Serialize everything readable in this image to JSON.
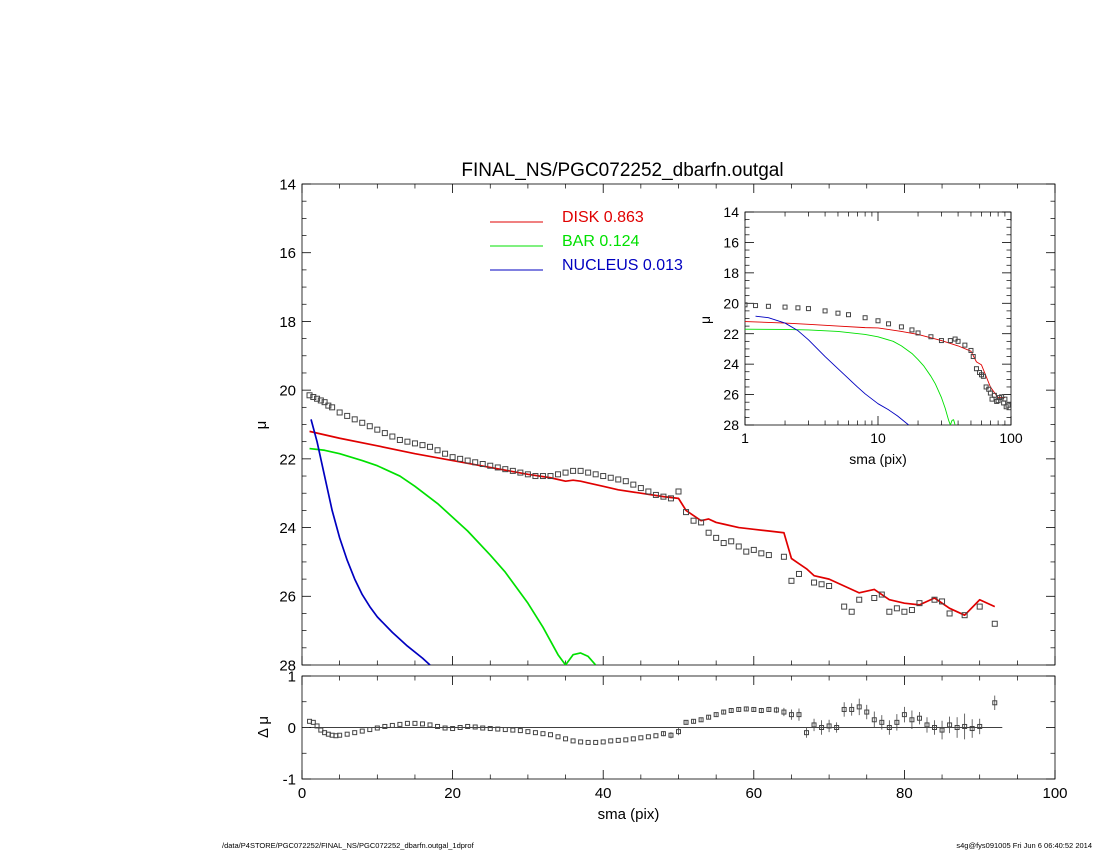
{
  "chart_data": [
    {
      "panel": "main",
      "type": "line",
      "title": "FINAL_NS/PGC072252_dbarfn.outgal",
      "xlabel": "",
      "ylabel": "μ",
      "xlim": [
        0,
        100
      ],
      "ylim": [
        14,
        28
      ],
      "y_inverted": true,
      "x_ticks": [
        0,
        20,
        40,
        60,
        80,
        100
      ],
      "y_ticks": [
        14,
        16,
        18,
        20,
        22,
        24,
        26,
        28
      ],
      "grid": false,
      "legend_position": "top",
      "legend": [
        {
          "name": "DISK",
          "value": "0.863",
          "color": "#e00000"
        },
        {
          "name": "BAR",
          "value": "0.124",
          "color": "#00e000"
        },
        {
          "name": "NUCLEUS",
          "value": "0.013",
          "color": "#0000c0"
        }
      ],
      "series": [
        {
          "name": "DISK",
          "color": "#e00000",
          "x": [
            1,
            5,
            10,
            15,
            20,
            25,
            30,
            33,
            35,
            36,
            37,
            38,
            40,
            42,
            45,
            48,
            50,
            51,
            52,
            53,
            54,
            55,
            56,
            58,
            60,
            62,
            64,
            65,
            66,
            67,
            68,
            70,
            72,
            74,
            76,
            78,
            80,
            82,
            84,
            86,
            88,
            90,
            92
          ],
          "y": [
            21.2,
            21.4,
            21.62,
            21.85,
            22.05,
            22.25,
            22.45,
            22.55,
            22.65,
            22.62,
            22.65,
            22.7,
            22.8,
            22.9,
            23.0,
            23.1,
            23.15,
            23.5,
            23.65,
            23.8,
            23.75,
            23.85,
            23.9,
            24.0,
            24.05,
            24.1,
            24.15,
            24.9,
            25.05,
            25.2,
            25.4,
            25.5,
            25.7,
            25.9,
            25.8,
            26.1,
            26.2,
            26.25,
            26.05,
            26.35,
            26.55,
            26.1,
            26.3
          ]
        },
        {
          "name": "BAR",
          "color": "#00e000",
          "x": [
            1,
            3,
            5,
            8,
            10,
            13,
            15,
            18,
            20,
            22,
            25,
            27,
            30,
            32,
            33,
            34,
            35,
            36,
            37,
            38,
            39
          ],
          "y": [
            21.7,
            21.75,
            21.85,
            22.05,
            22.2,
            22.5,
            22.8,
            23.3,
            23.7,
            24.1,
            24.8,
            25.3,
            26.2,
            26.9,
            27.3,
            27.7,
            28.0,
            27.7,
            27.65,
            27.75,
            28.0
          ]
        },
        {
          "name": "NUCLEUS",
          "color": "#0000c0",
          "x": [
            1.2,
            2,
            3,
            4,
            5,
            6,
            7,
            8,
            9,
            10,
            12,
            14,
            16,
            17
          ],
          "y": [
            20.85,
            21.5,
            22.5,
            23.5,
            24.3,
            24.95,
            25.5,
            25.95,
            26.3,
            26.6,
            27.05,
            27.45,
            27.8,
            28.0
          ]
        },
        {
          "name": "data",
          "style": "open-squares",
          "color": "#404040",
          "x": [
            1,
            1.5,
            2,
            2.5,
            3,
            3.5,
            4,
            5,
            6,
            7,
            8,
            9,
            10,
            11,
            12,
            13,
            14,
            15,
            16,
            17,
            18,
            19,
            20,
            21,
            22,
            23,
            24,
            25,
            26,
            27,
            28,
            29,
            30,
            31,
            32,
            33,
            34,
            35,
            36,
            37,
            38,
            39,
            40,
            41,
            42,
            43,
            44,
            45,
            46,
            47,
            48,
            49,
            50,
            51,
            52,
            53,
            54,
            55,
            56,
            57,
            58,
            59,
            60,
            61,
            62,
            64,
            65,
            66,
            68,
            69,
            70,
            72,
            73,
            74,
            76,
            77,
            78,
            79,
            80,
            81,
            82,
            84,
            85,
            86,
            88,
            90,
            92
          ],
          "y": [
            20.15,
            20.2,
            20.25,
            20.3,
            20.35,
            20.45,
            20.5,
            20.65,
            20.75,
            20.85,
            20.95,
            21.05,
            21.15,
            21.25,
            21.35,
            21.45,
            21.5,
            21.55,
            21.6,
            21.65,
            21.75,
            21.85,
            21.95,
            22.0,
            22.05,
            22.1,
            22.15,
            22.2,
            22.25,
            22.3,
            22.35,
            22.4,
            22.45,
            22.5,
            22.5,
            22.5,
            22.45,
            22.4,
            22.35,
            22.35,
            22.4,
            22.45,
            22.5,
            22.55,
            22.6,
            22.65,
            22.75,
            22.85,
            22.95,
            23.05,
            23.1,
            23.15,
            22.95,
            23.55,
            23.8,
            23.85,
            24.15,
            24.3,
            24.45,
            24.4,
            24.55,
            24.7,
            24.65,
            24.75,
            24.8,
            24.85,
            25.55,
            25.35,
            25.6,
            25.65,
            25.7,
            26.3,
            26.45,
            26.1,
            26.05,
            25.95,
            26.45,
            26.35,
            26.45,
            26.4,
            26.2,
            26.1,
            26.15,
            26.5,
            26.55,
            26.3,
            26.8
          ]
        }
      ]
    },
    {
      "panel": "residual",
      "type": "scatter",
      "xlabel": "sma (pix)",
      "ylabel": "Δ μ",
      "xlim": [
        0,
        100
      ],
      "ylim": [
        -1,
        1
      ],
      "x_ticks": [
        0,
        20,
        40,
        60,
        80,
        100
      ],
      "y_ticks": [
        -1,
        0,
        1
      ],
      "grid": false,
      "zero_line": true,
      "x": [
        1,
        1.5,
        2,
        2.5,
        3,
        3.5,
        4,
        4.5,
        5,
        6,
        7,
        8,
        9,
        10,
        11,
        12,
        13,
        14,
        15,
        16,
        17,
        18,
        19,
        20,
        21,
        22,
        23,
        24,
        25,
        26,
        27,
        28,
        29,
        30,
        31,
        32,
        33,
        34,
        35,
        36,
        37,
        38,
        39,
        40,
        41,
        42,
        43,
        44,
        45,
        46,
        47,
        48,
        49,
        50,
        51,
        52,
        53,
        54,
        55,
        56,
        57,
        58,
        59,
        60,
        61,
        62,
        63,
        64,
        65,
        66,
        67,
        68,
        69,
        70,
        71,
        72,
        73,
        74,
        75,
        76,
        77,
        78,
        79,
        80,
        81,
        82,
        83,
        84,
        85,
        86,
        87,
        88,
        89,
        90,
        92
      ],
      "y": [
        0.12,
        0.1,
        0.03,
        -0.05,
        -0.1,
        -0.13,
        -0.15,
        -0.16,
        -0.15,
        -0.13,
        -0.1,
        -0.07,
        -0.04,
        -0.01,
        0.02,
        0.04,
        0.06,
        0.08,
        0.08,
        0.07,
        0.05,
        0.02,
        -0.01,
        -0.02,
        0.0,
        0.02,
        0.01,
        -0.01,
        -0.02,
        -0.03,
        -0.04,
        -0.05,
        -0.06,
        -0.08,
        -0.1,
        -0.12,
        -0.14,
        -0.18,
        -0.22,
        -0.26,
        -0.28,
        -0.29,
        -0.29,
        -0.28,
        -0.26,
        -0.25,
        -0.24,
        -0.22,
        -0.2,
        -0.18,
        -0.16,
        -0.12,
        -0.15,
        -0.08,
        0.1,
        0.12,
        0.15,
        0.2,
        0.25,
        0.3,
        0.33,
        0.35,
        0.36,
        0.35,
        0.33,
        0.35,
        0.34,
        0.3,
        0.25,
        0.25,
        -0.1,
        0.05,
        0.0,
        0.03,
        0.0,
        0.35,
        0.35,
        0.4,
        0.3,
        0.15,
        0.1,
        0.0,
        0.1,
        0.25,
        0.15,
        0.18,
        0.05,
        0.0,
        -0.05,
        0.05,
        0.0,
        0.02,
        -0.02,
        0.02,
        0.48
      ],
      "err": [
        0,
        0,
        0,
        0,
        0,
        0,
        0,
        0,
        0,
        0,
        0,
        0,
        0,
        0,
        0,
        0,
        0,
        0,
        0,
        0,
        0,
        0,
        0,
        0,
        0,
        0,
        0,
        0,
        0,
        0,
        0,
        0,
        0,
        0,
        0,
        0,
        0,
        0,
        0,
        0,
        0,
        0,
        0,
        0,
        0,
        0,
        0,
        0,
        0,
        0,
        0,
        0.05,
        0.06,
        0.07,
        0.04,
        0.04,
        0.04,
        0.04,
        0.04,
        0.04,
        0.04,
        0.04,
        0.04,
        0.04,
        0.05,
        0.05,
        0.06,
        0.08,
        0.1,
        0.12,
        0.1,
        0.12,
        0.14,
        0.12,
        0.1,
        0.14,
        0.12,
        0.16,
        0.14,
        0.16,
        0.14,
        0.14,
        0.16,
        0.15,
        0.18,
        0.12,
        0.15,
        0.14,
        0.18,
        0.16,
        0.2,
        0.25,
        0.18,
        0.15,
        0.14
      ]
    },
    {
      "panel": "inset",
      "type": "line",
      "xlabel": "sma (pix)",
      "ylabel": "μ",
      "xscale": "log",
      "xlim": [
        1,
        100
      ],
      "ylim": [
        14,
        28
      ],
      "y_inverted": true,
      "x_ticks": [
        1,
        10,
        100
      ],
      "y_ticks": [
        14,
        16,
        18,
        20,
        22,
        24,
        26,
        28
      ],
      "grid": false,
      "series": [
        {
          "name": "DISK",
          "color": "#e00000",
          "x": [
            1,
            2,
            3,
            5,
            8,
            10,
            15,
            20,
            30,
            40,
            50,
            55,
            60,
            70,
            80,
            90
          ],
          "y": [
            21.2,
            21.3,
            21.38,
            21.5,
            21.6,
            21.62,
            21.85,
            22.05,
            22.45,
            22.8,
            23.15,
            23.85,
            24.05,
            25.5,
            26.2,
            26.2
          ]
        },
        {
          "name": "BAR",
          "color": "#00e000",
          "x": [
            1,
            2,
            3,
            5,
            8,
            10,
            13,
            15,
            18,
            20,
            22,
            25,
            27,
            30,
            32,
            34,
            35,
            36,
            37,
            38
          ],
          "y": [
            21.7,
            21.72,
            21.75,
            21.85,
            22.05,
            22.2,
            22.5,
            22.8,
            23.3,
            23.7,
            24.1,
            24.8,
            25.3,
            26.2,
            26.9,
            27.7,
            28.0,
            27.7,
            27.65,
            28.0
          ]
        },
        {
          "name": "NUCLEUS",
          "color": "#0000c0",
          "x": [
            1.2,
            1.5,
            2,
            2.5,
            3,
            4,
            5,
            6,
            7,
            8,
            10,
            12,
            14,
            17
          ],
          "y": [
            20.85,
            20.95,
            21.3,
            21.8,
            22.4,
            23.5,
            24.3,
            24.95,
            25.5,
            25.95,
            26.6,
            27.0,
            27.4,
            28.0
          ]
        },
        {
          "name": "data",
          "style": "open-squares",
          "color": "#404040",
          "x": [
            1,
            1.2,
            1.5,
            2,
            2.5,
            3,
            4,
            5,
            6,
            8,
            10,
            12,
            15,
            18,
            20,
            25,
            30,
            35,
            38,
            40,
            45,
            50,
            52,
            55,
            58,
            60,
            62,
            65,
            68,
            70,
            72,
            75,
            78,
            80,
            82,
            85,
            88,
            90,
            92,
            95
          ],
          "y": [
            20.1,
            20.15,
            20.2,
            20.25,
            20.3,
            20.35,
            20.5,
            20.65,
            20.75,
            20.95,
            21.15,
            21.35,
            21.55,
            21.75,
            21.95,
            22.2,
            22.45,
            22.45,
            22.35,
            22.5,
            22.75,
            23.1,
            23.5,
            24.3,
            24.55,
            24.7,
            24.8,
            25.5,
            25.65,
            25.9,
            26.3,
            26.05,
            26.45,
            26.4,
            26.2,
            26.15,
            26.55,
            26.3,
            26.8,
            26.7
          ]
        }
      ]
    }
  ],
  "footer": {
    "left": "/data/P4STORE/PGC072252/FINAL_NS/PGC072252_dbarfn.outgal_1dprof",
    "right": "s4g@fys091005  Fri Jun  6 06:40:52 2014"
  }
}
